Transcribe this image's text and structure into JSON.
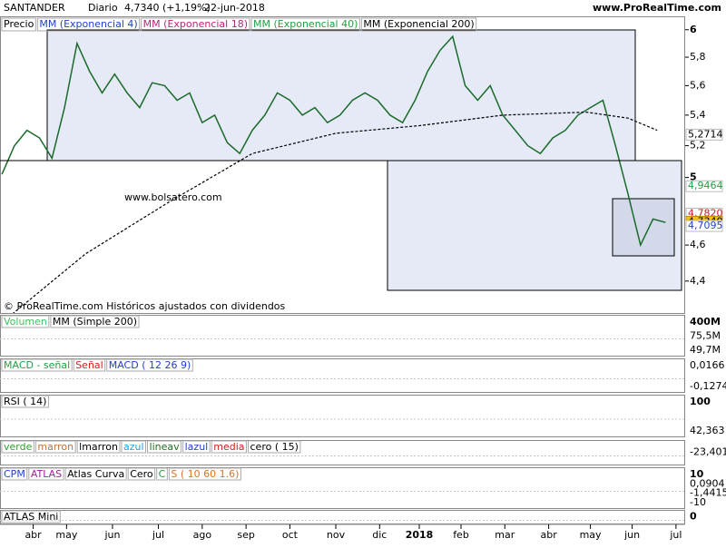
{
  "header": {
    "symbol": "SANTANDER",
    "period": "Diario",
    "price": "4,7340 (+1,19%)",
    "date": "22-jun-2018",
    "site": "www.ProRealTime.com"
  },
  "chart_data": {
    "type": "line",
    "legend": [
      "Precio",
      "MM (Exponencial 4)",
      "MM (Exponencial 18)",
      "MM (Exponencial 40)",
      "MM (Exponencial 200)"
    ],
    "legend_colors": [
      "#000000",
      "#2040d0",
      "#c0207a",
      "#20a040",
      "#000000"
    ],
    "watermark": "www.bolsatero.com",
    "footer": "© ProRealTime.com Históricos ajustados con dividendos",
    "log_scale": true,
    "xlim": [
      -0.9,
      327.4
    ],
    "ylim": [
      4.23,
      6.1
    ],
    "yticks": [
      {
        "value": 4.4,
        "label": "4,4"
      },
      {
        "value": 4.6,
        "label": "4,6"
      },
      5,
      {
        "value": 5.2,
        "label": "5,2"
      },
      {
        "value": 5.4,
        "label": "5,4"
      },
      {
        "value": 5.6,
        "label": "5,6"
      },
      {
        "value": 5.8,
        "label": "5,8"
      },
      6
    ],
    "xticks": [
      {
        "value": 15,
        "label": "abr"
      },
      {
        "value": 31,
        "label": "may"
      },
      {
        "value": 53,
        "label": "jun"
      },
      {
        "value": 75,
        "label": "jul"
      },
      {
        "value": 96,
        "label": "ago"
      },
      {
        "value": 117,
        "label": "sep"
      },
      {
        "value": 138,
        "label": "oct"
      },
      {
        "value": 160,
        "label": "nov"
      },
      {
        "value": 181,
        "label": "dic"
      },
      {
        "value": 200,
        "label": "2018"
      },
      {
        "value": 220,
        "label": "feb"
      },
      {
        "value": 241,
        "label": "mar"
      },
      {
        "value": 262,
        "label": "abr"
      },
      {
        "value": 282,
        "label": "may"
      },
      {
        "value": 302,
        "label": "jun"
      },
      {
        "value": 323,
        "label": "jul"
      }
    ],
    "series": [
      {
        "name": "Precio",
        "color": "#1a6a2a",
        "dash": false,
        "x": [
          0,
          6,
          12,
          18,
          24,
          30,
          36,
          42,
          48,
          54,
          60,
          66,
          72,
          78,
          84,
          90,
          96,
          102,
          108,
          114,
          120,
          126,
          132,
          138,
          144,
          150,
          156,
          162,
          168,
          174,
          180,
          186,
          192,
          198,
          204,
          210,
          216,
          222,
          228,
          234,
          240,
          246,
          252,
          258,
          264,
          270,
          276,
          282,
          288,
          294,
          300,
          306,
          312,
          318
        ],
        "values": [
          5.02,
          5.2,
          5.3,
          5.25,
          5.12,
          5.45,
          5.9,
          5.7,
          5.55,
          5.68,
          5.55,
          5.45,
          5.62,
          5.6,
          5.5,
          5.55,
          5.35,
          5.4,
          5.22,
          5.15,
          5.3,
          5.4,
          5.55,
          5.5,
          5.4,
          5.45,
          5.35,
          5.4,
          5.5,
          5.55,
          5.5,
          5.4,
          5.35,
          5.5,
          5.7,
          5.85,
          5.95,
          5.6,
          5.5,
          5.6,
          5.4,
          5.3,
          5.2,
          5.15,
          5.25,
          5.3,
          5.4,
          5.45,
          5.5,
          5.2,
          4.9,
          4.6,
          4.75,
          4.73
        ]
      },
      {
        "name": "MM (Exponencial 200)",
        "color": "#000000",
        "dash": true,
        "x": [
          0,
          40,
          80,
          120,
          160,
          200,
          240,
          280,
          300,
          314
        ],
        "values": [
          4.18,
          4.55,
          4.85,
          5.15,
          5.28,
          5.33,
          5.4,
          5.42,
          5.38,
          5.3
        ]
      }
    ],
    "price_labels": [
      {
        "value": 5.2714,
        "label": "5,2714",
        "color": "#000000",
        "bg": "#ffffff"
      },
      {
        "value": 4.9464,
        "label": "4,9464",
        "color": "#20a040",
        "bg": "#ffffff"
      },
      {
        "value": 4.782,
        "label": "4,7820",
        "color": "#c02020",
        "bg": "#ffffff"
      },
      {
        "value": 4.734,
        "label": "4,7340",
        "color": "#000000",
        "bg": "#f5c400"
      },
      {
        "value": 4.7095,
        "label": "4,7095",
        "color": "#2040d0",
        "bg": "#ffffff"
      }
    ]
  },
  "panels": [
    {
      "legend": [
        "Volumen",
        "MM (Simple 200)"
      ],
      "colors": [
        "#40c060",
        "#000000"
      ],
      "axis_labels": [
        "400M",
        "75,5M",
        "49,7M"
      ]
    },
    {
      "legend": [
        "MACD - señal",
        "Señal",
        "MACD ( 12 26 9)"
      ],
      "colors": [
        "#20a040",
        "#d02020",
        "#2040d0"
      ],
      "axis_labels": [
        "0,0166",
        "-0,1274"
      ]
    },
    {
      "legend": [
        "RSI ( 14)"
      ],
      "colors": [
        "#000000"
      ],
      "axis_labels": [
        "100",
        "42,363"
      ]
    },
    {
      "legend": [
        "verde",
        "marron",
        "lmarron",
        "azul",
        "lineav",
        "lazul",
        "media",
        "cero ( 15)"
      ],
      "colors": [
        "#30a030",
        "#c07030",
        "#000000",
        "#20a0e0",
        "#207020",
        "#2040d0",
        "#d02020",
        "#000000"
      ],
      "axis_labels": [
        "-23,401"
      ]
    },
    {
      "legend": [
        "CPM",
        "ATLAS",
        "Atlas Curva",
        "Cero",
        "C",
        "S ( 10 60 1.6)"
      ],
      "colors": [
        "#2040d0",
        "#a020a0",
        "#000000",
        "#000000",
        "#20a040",
        "#e07020"
      ],
      "axis_labels": [
        "10",
        "0,0904",
        "-1,4415",
        "-10"
      ]
    },
    {
      "legend": [
        "ATLAS Mini"
      ],
      "colors": [
        "#000000"
      ],
      "axis_labels": [
        "0"
      ]
    }
  ]
}
